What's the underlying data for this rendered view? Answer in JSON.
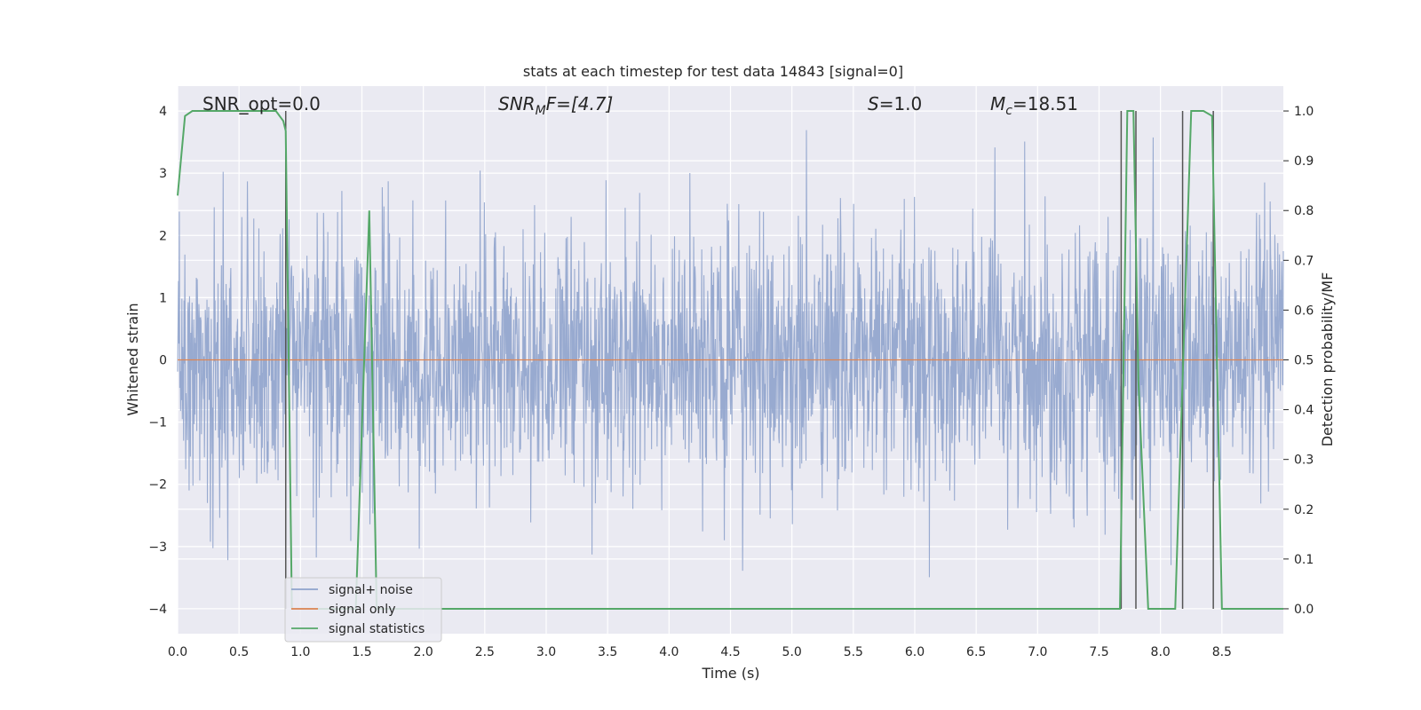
{
  "chart_data": {
    "type": "line",
    "title": "stats at each timestep for test data 14843 [signal=0]",
    "xlabel": "Time (s)",
    "ylabel_left": "Whitened strain",
    "ylabel_right": "Detection probability/MF",
    "xlim": [
      0.0,
      9.0
    ],
    "ylim_left": [
      -4.4,
      4.4
    ],
    "ylim_right": [
      -0.05,
      1.05
    ],
    "x_ticks": [
      "0.0",
      "0.5",
      "1.0",
      "1.5",
      "2.0",
      "2.5",
      "3.0",
      "3.5",
      "4.0",
      "4.5",
      "5.0",
      "5.5",
      "6.0",
      "6.5",
      "7.0",
      "7.5",
      "8.0",
      "8.5"
    ],
    "y_ticks_left": [
      "4",
      "3",
      "2",
      "1",
      "0",
      "−1",
      "−2",
      "−3",
      "−4"
    ],
    "y_ticks_right": [
      "1.0",
      "0.9",
      "0.8",
      "0.7",
      "0.6",
      "0.5",
      "0.4",
      "0.3",
      "0.2",
      "0.1",
      "0.0"
    ],
    "grid": true,
    "legend_position": "lower-left",
    "annotations": {
      "snr_opt": "SNR_opt=0.0",
      "snr_mf_sym": "SNR",
      "snr_mf_sub": "M",
      "snr_mf_rest": "F=[4.7]",
      "s_sym": "S",
      "s_rest": "=1.0",
      "mc_sym": "M",
      "mc_sub": "c",
      "mc_rest": "=18.51"
    },
    "series": [
      {
        "name": "signal+ noise",
        "color": "#8fa3cc",
        "axis": "left",
        "description_values": "whitened noise, dense trace spanning approx -3.7 to 3.9",
        "amplitude_range": [
          -3.7,
          3.9
        ]
      },
      {
        "name": "signal only",
        "color": "#dd8452",
        "axis": "left",
        "values_constant": 0.0
      },
      {
        "name": "signal statistics",
        "color": "#55a868",
        "axis": "right",
        "points": [
          [
            0.0,
            0.83
          ],
          [
            0.06,
            0.99
          ],
          [
            0.12,
            1.0
          ],
          [
            0.8,
            1.0
          ],
          [
            0.86,
            0.98
          ],
          [
            0.88,
            0.96
          ],
          [
            0.93,
            0.0
          ],
          [
            1.45,
            0.0
          ],
          [
            1.56,
            0.8
          ],
          [
            1.62,
            0.0
          ],
          [
            7.6,
            0.0
          ],
          [
            7.67,
            0.0
          ],
          [
            7.73,
            1.0
          ],
          [
            7.78,
            1.0
          ],
          [
            7.82,
            0.46
          ],
          [
            7.9,
            0.0
          ],
          [
            8.12,
            0.0
          ],
          [
            8.25,
            1.0
          ],
          [
            8.35,
            1.0
          ],
          [
            8.42,
            0.99
          ],
          [
            8.5,
            0.0
          ],
          [
            9.0,
            0.0
          ]
        ]
      }
    ],
    "vertical_lines": [
      0.88,
      7.68,
      7.8,
      8.18,
      8.43
    ],
    "vertical_line_color": "#555555"
  },
  "colors": {
    "plot_background": "#eaeaf2",
    "grid": "#ffffff",
    "noise": "#8fa3cc",
    "signal_only": "#dd8452",
    "statistics": "#55a868"
  }
}
